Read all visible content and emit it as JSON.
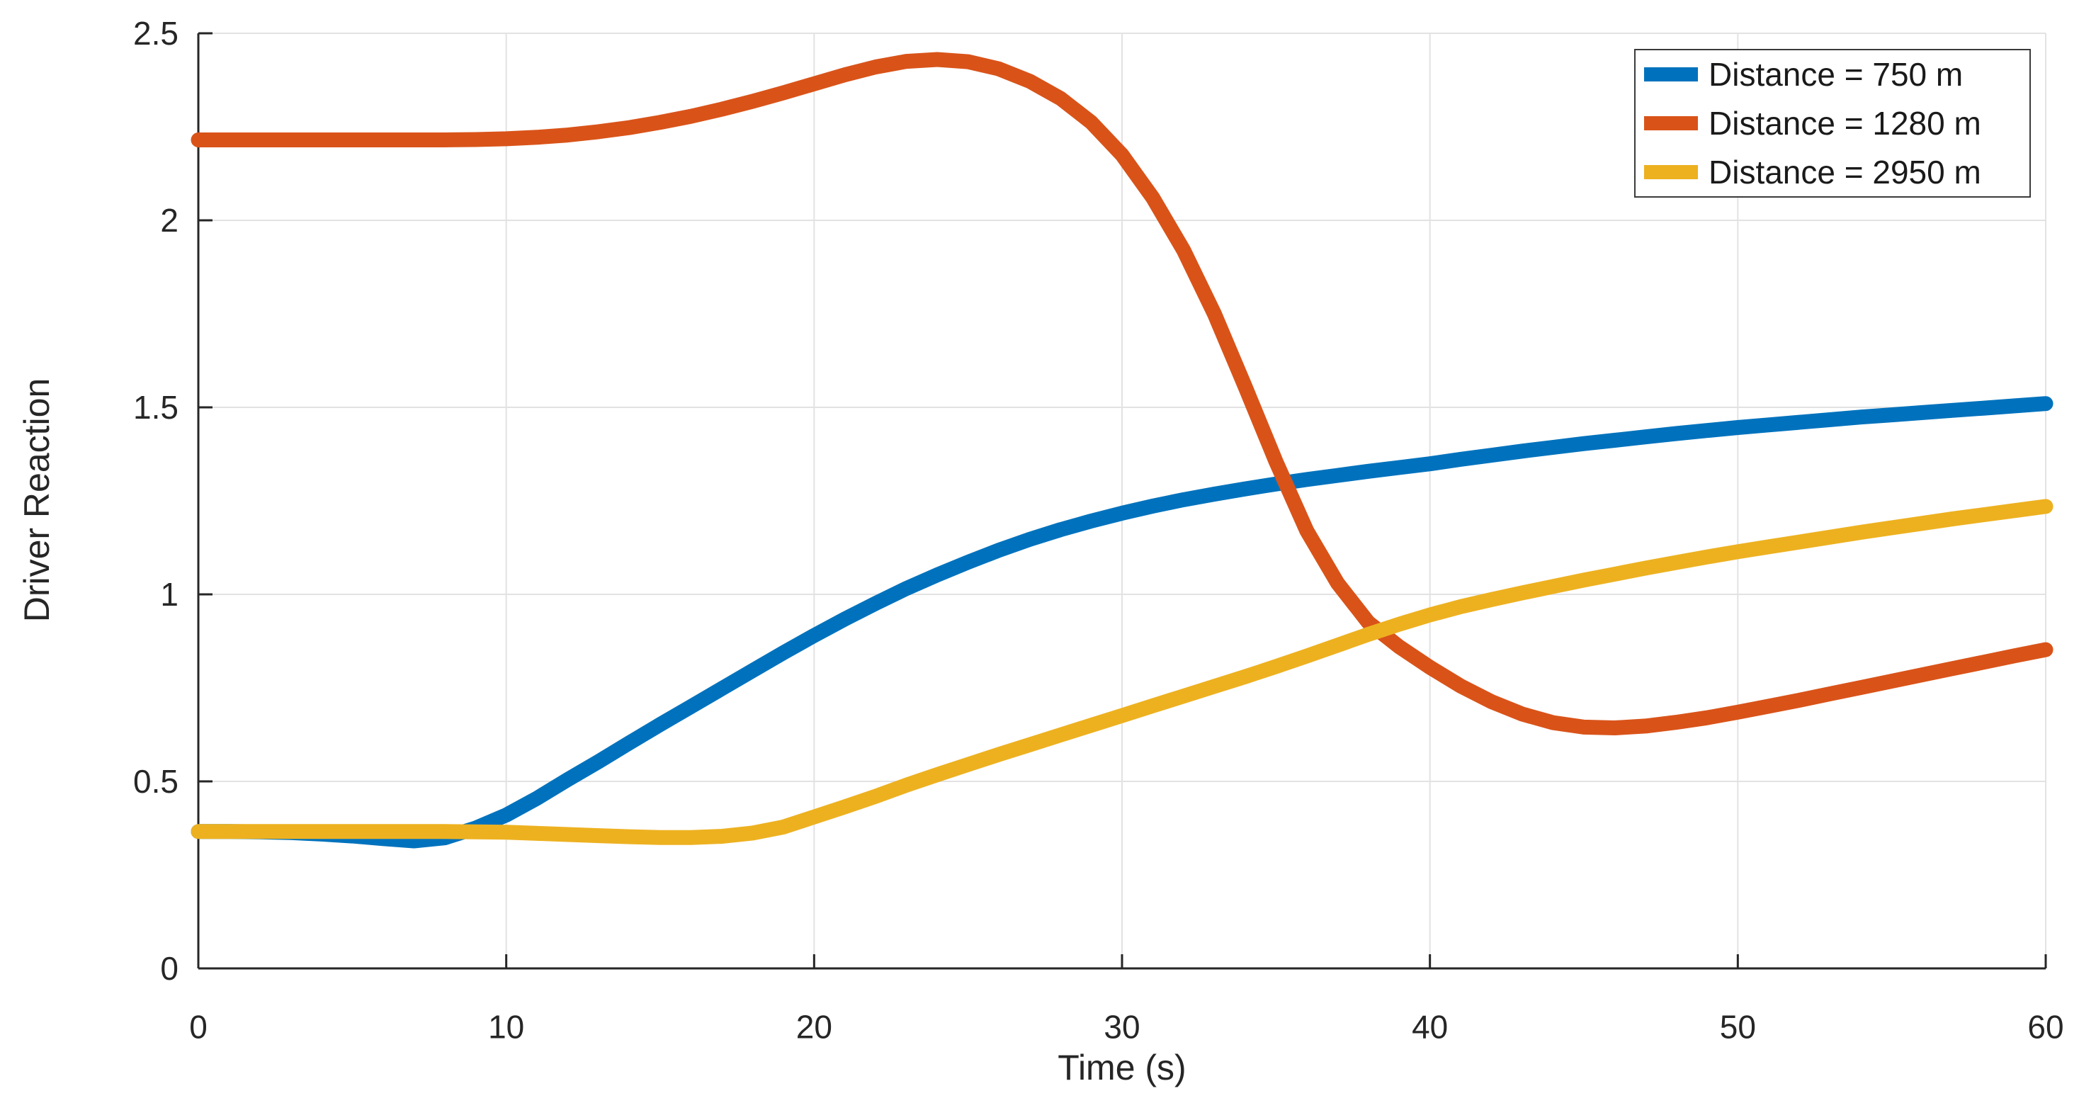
{
  "chart_data": {
    "type": "line",
    "title": "",
    "xlabel": "Time (s)",
    "ylabel": "Driver Reaction",
    "xlim": [
      0,
      60
    ],
    "ylim": [
      0,
      2.5
    ],
    "xticks": [
      0,
      10,
      20,
      30,
      40,
      50,
      60
    ],
    "yticks": [
      0,
      0.5,
      1,
      1.5,
      2,
      2.5
    ],
    "xtick_labels": [
      "0",
      "10",
      "20",
      "30",
      "40",
      "50",
      "60"
    ],
    "ytick_labels": [
      "0",
      "0.5",
      "1",
      "1.5",
      "2",
      "2.5"
    ],
    "grid": true,
    "legend_position": "top-right",
    "colors": {
      "grid": "#e2e2e2",
      "axis": "#262626",
      "background": "#ffffff"
    },
    "x": [
      0,
      1,
      2,
      3,
      4,
      5,
      6,
      7,
      8,
      9,
      10,
      11,
      12,
      13,
      14,
      15,
      16,
      17,
      18,
      19,
      20,
      21,
      22,
      23,
      24,
      25,
      26,
      27,
      28,
      29,
      30,
      31,
      32,
      33,
      34,
      35,
      36,
      37,
      38,
      39,
      40,
      41,
      42,
      43,
      44,
      45,
      46,
      47,
      48,
      49,
      50,
      51,
      52,
      53,
      54,
      55,
      56,
      57,
      58,
      59,
      60
    ],
    "series": [
      {
        "name": "Distance = 750 m",
        "color": "#0072BD",
        "values": [
          0.366,
          0.366,
          0.365,
          0.363,
          0.359,
          0.354,
          0.347,
          0.341,
          0.349,
          0.375,
          0.41,
          0.455,
          0.505,
          0.553,
          0.603,
          0.652,
          0.7,
          0.748,
          0.796,
          0.844,
          0.89,
          0.934,
          0.976,
          1.016,
          1.052,
          1.086,
          1.118,
          1.147,
          1.173,
          1.196,
          1.217,
          1.236,
          1.253,
          1.268,
          1.282,
          1.295,
          1.307,
          1.318,
          1.329,
          1.339,
          1.349,
          1.361,
          1.372,
          1.383,
          1.393,
          1.403,
          1.412,
          1.421,
          1.43,
          1.438,
          1.446,
          1.453,
          1.46,
          1.467,
          1.474,
          1.48,
          1.486,
          1.492,
          1.498,
          1.504,
          1.51
        ]
      },
      {
        "name": "Distance = 1280 m",
        "color": "#D95319",
        "values": [
          2.215,
          2.215,
          2.215,
          2.215,
          2.215,
          2.215,
          2.215,
          2.215,
          2.215,
          2.216,
          2.218,
          2.222,
          2.228,
          2.237,
          2.248,
          2.262,
          2.278,
          2.297,
          2.318,
          2.341,
          2.365,
          2.389,
          2.41,
          2.425,
          2.43,
          2.424,
          2.405,
          2.372,
          2.326,
          2.262,
          2.175,
          2.06,
          1.92,
          1.75,
          1.555,
          1.355,
          1.17,
          1.03,
          0.925,
          0.86,
          0.805,
          0.755,
          0.713,
          0.68,
          0.657,
          0.645,
          0.643,
          0.648,
          0.658,
          0.67,
          0.685,
          0.701,
          0.717,
          0.734,
          0.751,
          0.768,
          0.785,
          0.802,
          0.819,
          0.836,
          0.852
        ]
      },
      {
        "name": "Distance = 2950 m",
        "color": "#EDB120",
        "values": [
          0.366,
          0.366,
          0.366,
          0.366,
          0.366,
          0.366,
          0.366,
          0.366,
          0.366,
          0.365,
          0.364,
          0.361,
          0.358,
          0.355,
          0.352,
          0.35,
          0.35,
          0.353,
          0.362,
          0.378,
          0.405,
          0.432,
          0.46,
          0.49,
          0.518,
          0.545,
          0.572,
          0.598,
          0.624,
          0.65,
          0.676,
          0.702,
          0.728,
          0.754,
          0.78,
          0.807,
          0.835,
          0.864,
          0.893,
          0.92,
          0.945,
          0.967,
          0.986,
          1.004,
          1.021,
          1.038,
          1.054,
          1.07,
          1.085,
          1.1,
          1.114,
          1.127,
          1.14,
          1.153,
          1.166,
          1.178,
          1.19,
          1.202,
          1.213,
          1.224,
          1.235
        ]
      }
    ]
  }
}
